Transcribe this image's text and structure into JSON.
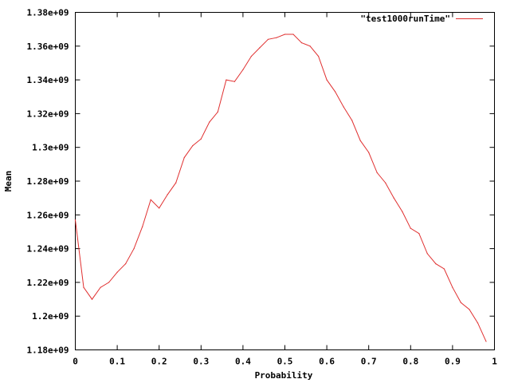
{
  "chart_data": {
    "type": "line",
    "title": "",
    "xlabel": "Probability",
    "ylabel": "Mean",
    "xlim": [
      0,
      1
    ],
    "ylim": [
      1180000000,
      1380000000
    ],
    "x_ticks": [
      0,
      0.1,
      0.2,
      0.3,
      0.4,
      0.5,
      0.6,
      0.7,
      0.8,
      0.9,
      1
    ],
    "x_tick_labels": [
      "0",
      "0.1",
      "0.2",
      "0.3",
      "0.4",
      "0.5",
      "0.6",
      "0.7",
      "0.8",
      "0.9",
      "1"
    ],
    "y_ticks": [
      1180000000,
      1200000000,
      1220000000,
      1240000000,
      1260000000,
      1280000000,
      1300000000,
      1320000000,
      1340000000,
      1360000000,
      1380000000
    ],
    "y_tick_labels": [
      "1.18e+09",
      "1.2e+09",
      "1.22e+09",
      "1.24e+09",
      "1.26e+09",
      "1.28e+09",
      "1.3e+09",
      "1.32e+09",
      "1.34e+09",
      "1.36e+09",
      "1.38e+09"
    ],
    "grid": false,
    "legend_position": "top-right",
    "series": [
      {
        "name": "\"test1000runTime\"",
        "color": "#e03030",
        "x": [
          0,
          0.02,
          0.04,
          0.06,
          0.08,
          0.1,
          0.12,
          0.14,
          0.16,
          0.18,
          0.2,
          0.22,
          0.24,
          0.26,
          0.28,
          0.3,
          0.32,
          0.34,
          0.36,
          0.38,
          0.4,
          0.42,
          0.44,
          0.46,
          0.48,
          0.5,
          0.52,
          0.54,
          0.56,
          0.58,
          0.6,
          0.62,
          0.64,
          0.66,
          0.68,
          0.7,
          0.72,
          0.74,
          0.76,
          0.78,
          0.8,
          0.82,
          0.84,
          0.86,
          0.88,
          0.9,
          0.92,
          0.94,
          0.96,
          0.98
        ],
        "y": [
          1257000000,
          1217000000,
          1210000000,
          1217000000,
          1220000000,
          1226000000,
          1231000000,
          1240000000,
          1253000000,
          1269000000,
          1264000000,
          1272000000,
          1279000000,
          1294000000,
          1301000000,
          1305000000,
          1315000000,
          1321000000,
          1340000000,
          1339000000,
          1346000000,
          1354000000,
          1359000000,
          1364000000,
          1365000000,
          1367000000,
          1367000000,
          1362000000,
          1360000000,
          1354000000,
          1340000000,
          1333000000,
          1324000000,
          1316000000,
          1304000000,
          1297000000,
          1285000000,
          1279000000,
          1270000000,
          1262000000,
          1252000000,
          1249000000,
          1237000000,
          1231000000,
          1228000000,
          1217000000,
          1208000000,
          1204000000,
          1196000000,
          1185000000
        ]
      }
    ]
  }
}
